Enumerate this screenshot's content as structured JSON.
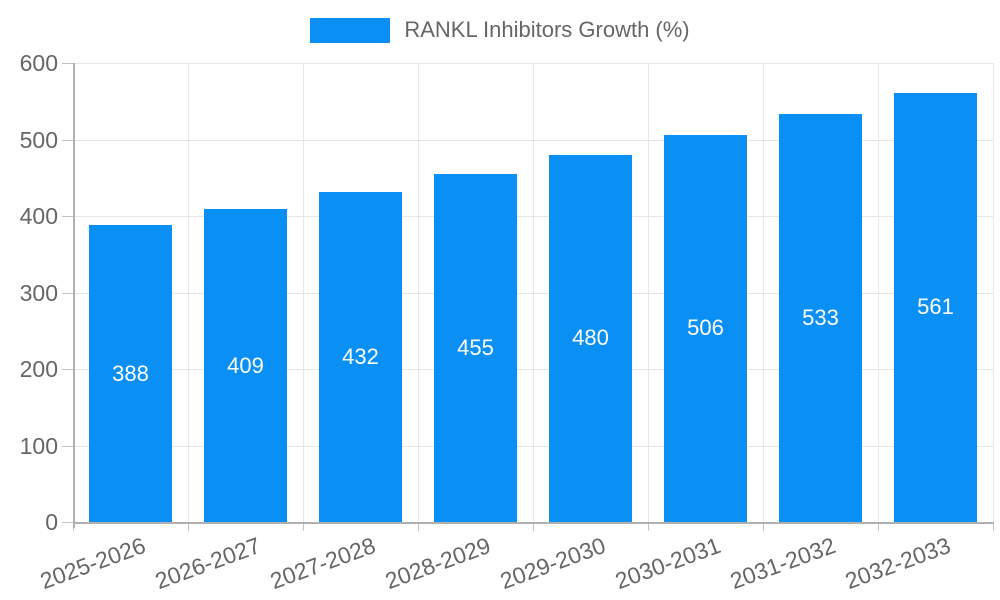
{
  "legend": {
    "label": "RANKL Inhibitors Growth (%)"
  },
  "chart_data": {
    "type": "bar",
    "title": "",
    "xlabel": "",
    "ylabel": "",
    "categories": [
      "2025-2026",
      "2026-2027",
      "2027-2028",
      "2028-2029",
      "2029-2030",
      "2030-2031",
      "2031-2032",
      "2032-2033"
    ],
    "series": [
      {
        "name": "RANKL Inhibitors Growth (%)",
        "values": [
          388,
          409,
          432,
          455,
          480,
          506,
          533,
          561
        ]
      }
    ],
    "value_labels": [
      "388",
      "409",
      "432",
      "455",
      "480",
      "506",
      "533",
      "561"
    ],
    "ylim": [
      0,
      600
    ],
    "yticks": [
      0,
      100,
      200,
      300,
      400,
      500,
      600
    ],
    "grid": true,
    "legend_position": "top-center",
    "style": {
      "bar_color": "#0a90f5",
      "value_label_color": "#ffffff",
      "grid_color": "#e6e6e6",
      "axis_color": "#b0b0b0",
      "tick_text_color": "#666666"
    }
  }
}
